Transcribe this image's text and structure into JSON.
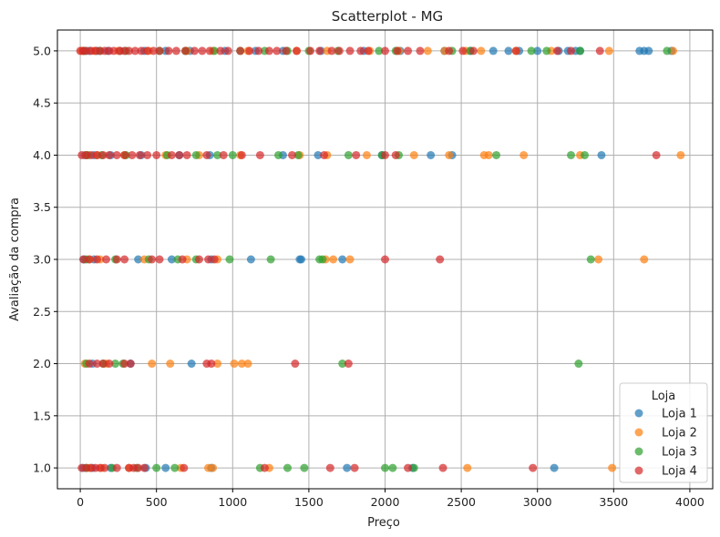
{
  "chart_data": {
    "type": "scatter",
    "title": "Scatterplot - MG",
    "xlabel": "Preço",
    "ylabel": "Avaliação da compra",
    "xlim": [
      -150,
      4150
    ],
    "ylim": [
      0.8,
      5.2
    ],
    "x_ticks": [
      0,
      500,
      1000,
      1500,
      2000,
      2500,
      3000,
      3500,
      4000
    ],
    "y_ticks": [
      1.0,
      1.5,
      2.0,
      2.5,
      3.0,
      3.5,
      4.0,
      4.5,
      5.0
    ],
    "x_tick_labels": [
      "0",
      "500",
      "1000",
      "1500",
      "2000",
      "2500",
      "3000",
      "3500",
      "4000"
    ],
    "y_tick_labels": [
      "1.0",
      "1.5",
      "2.0",
      "2.5",
      "3.0",
      "3.5",
      "4.0",
      "4.5",
      "5.0"
    ],
    "grid": true,
    "legend": {
      "title": "Loja",
      "placement": "lower-right"
    },
    "marker_alpha": 0.7,
    "series": [
      {
        "name": "Loja 1",
        "color": "#1f77b4",
        "points": [
          [
            20,
            5
          ],
          [
            60,
            5
          ],
          [
            110,
            5
          ],
          [
            180,
            5
          ],
          [
            260,
            5
          ],
          [
            420,
            5
          ],
          [
            560,
            5
          ],
          [
            720,
            5
          ],
          [
            950,
            5
          ],
          [
            1150,
            5
          ],
          [
            1330,
            5
          ],
          [
            1580,
            5
          ],
          [
            1860,
            5
          ],
          [
            2100,
            5
          ],
          [
            2390,
            5
          ],
          [
            2560,
            5
          ],
          [
            2710,
            5
          ],
          [
            2810,
            5
          ],
          [
            2880,
            5
          ],
          [
            3000,
            5
          ],
          [
            3140,
            5
          ],
          [
            3200,
            5
          ],
          [
            3250,
            5
          ],
          [
            3280,
            5
          ],
          [
            3670,
            5
          ],
          [
            3700,
            5
          ],
          [
            3730,
            5
          ],
          [
            3880,
            5
          ],
          [
            30,
            4
          ],
          [
            90,
            4
          ],
          [
            200,
            4
          ],
          [
            400,
            4
          ],
          [
            650,
            4
          ],
          [
            850,
            4
          ],
          [
            1330,
            4
          ],
          [
            1560,
            4
          ],
          [
            1980,
            4
          ],
          [
            2300,
            4
          ],
          [
            2440,
            4
          ],
          [
            3420,
            4
          ],
          [
            25,
            3
          ],
          [
            90,
            3
          ],
          [
            380,
            3
          ],
          [
            600,
            3
          ],
          [
            860,
            3
          ],
          [
            1120,
            3
          ],
          [
            1440,
            3
          ],
          [
            1450,
            3
          ],
          [
            1720,
            3
          ],
          [
            80,
            2
          ],
          [
            330,
            2
          ],
          [
            730,
            2
          ],
          [
            20,
            1
          ],
          [
            80,
            1
          ],
          [
            200,
            1
          ],
          [
            430,
            1
          ],
          [
            560,
            1
          ],
          [
            860,
            1
          ],
          [
            1750,
            1
          ],
          [
            2180,
            1
          ],
          [
            3110,
            1
          ]
        ]
      },
      {
        "name": "Loja 2",
        "color": "#ff7f0e",
        "points": [
          [
            10,
            5
          ],
          [
            90,
            5
          ],
          [
            250,
            5
          ],
          [
            450,
            5
          ],
          [
            700,
            5
          ],
          [
            870,
            5
          ],
          [
            1100,
            5
          ],
          [
            1420,
            5
          ],
          [
            1620,
            5
          ],
          [
            1900,
            5
          ],
          [
            2090,
            5
          ],
          [
            2280,
            5
          ],
          [
            2390,
            5
          ],
          [
            2530,
            5
          ],
          [
            2630,
            5
          ],
          [
            2860,
            5
          ],
          [
            3090,
            5
          ],
          [
            3470,
            5
          ],
          [
            3890,
            5
          ],
          [
            40,
            4
          ],
          [
            110,
            4
          ],
          [
            290,
            4
          ],
          [
            560,
            4
          ],
          [
            780,
            4
          ],
          [
            1050,
            4
          ],
          [
            1440,
            4
          ],
          [
            1620,
            4
          ],
          [
            1880,
            4
          ],
          [
            2190,
            4
          ],
          [
            2420,
            4
          ],
          [
            2650,
            4
          ],
          [
            2680,
            4
          ],
          [
            2910,
            4
          ],
          [
            3280,
            4
          ],
          [
            3940,
            4
          ],
          [
            60,
            3
          ],
          [
            130,
            3
          ],
          [
            420,
            3
          ],
          [
            700,
            3
          ],
          [
            900,
            3
          ],
          [
            1610,
            3
          ],
          [
            1660,
            3
          ],
          [
            1770,
            3
          ],
          [
            3400,
            3
          ],
          [
            3700,
            3
          ],
          [
            30,
            2
          ],
          [
            170,
            2
          ],
          [
            470,
            2
          ],
          [
            590,
            2
          ],
          [
            900,
            2
          ],
          [
            1010,
            2
          ],
          [
            1060,
            2
          ],
          [
            1100,
            2
          ],
          [
            60,
            1
          ],
          [
            140,
            1
          ],
          [
            320,
            1
          ],
          [
            660,
            1
          ],
          [
            840,
            1
          ],
          [
            870,
            1
          ],
          [
            1240,
            1
          ],
          [
            2540,
            1
          ],
          [
            3490,
            1
          ]
        ]
      },
      {
        "name": "Loja 3",
        "color": "#2ca02c",
        "points": [
          [
            30,
            5
          ],
          [
            130,
            5
          ],
          [
            300,
            5
          ],
          [
            520,
            5
          ],
          [
            690,
            5
          ],
          [
            880,
            5
          ],
          [
            1050,
            5
          ],
          [
            1210,
            5
          ],
          [
            1360,
            5
          ],
          [
            1500,
            5
          ],
          [
            1690,
            5
          ],
          [
            1960,
            5
          ],
          [
            2070,
            5
          ],
          [
            2440,
            5
          ],
          [
            2560,
            5
          ],
          [
            2960,
            5
          ],
          [
            3060,
            5
          ],
          [
            3280,
            5
          ],
          [
            3850,
            5
          ],
          [
            50,
            4
          ],
          [
            140,
            4
          ],
          [
            300,
            4
          ],
          [
            570,
            4
          ],
          [
            760,
            4
          ],
          [
            900,
            4
          ],
          [
            1000,
            4
          ],
          [
            1300,
            4
          ],
          [
            1430,
            4
          ],
          [
            1760,
            4
          ],
          [
            1980,
            4
          ],
          [
            2090,
            4
          ],
          [
            2730,
            4
          ],
          [
            3220,
            4
          ],
          [
            3310,
            4
          ],
          [
            40,
            3
          ],
          [
            230,
            3
          ],
          [
            450,
            3
          ],
          [
            640,
            3
          ],
          [
            760,
            3
          ],
          [
            980,
            3
          ],
          [
            1250,
            3
          ],
          [
            1570,
            3
          ],
          [
            1590,
            3
          ],
          [
            3350,
            3
          ],
          [
            40,
            2
          ],
          [
            150,
            2
          ],
          [
            230,
            2
          ],
          [
            280,
            2
          ],
          [
            1720,
            2
          ],
          [
            3270,
            2
          ],
          [
            40,
            1
          ],
          [
            210,
            1
          ],
          [
            370,
            1
          ],
          [
            500,
            1
          ],
          [
            620,
            1
          ],
          [
            1180,
            1
          ],
          [
            1360,
            1
          ],
          [
            1470,
            1
          ],
          [
            2000,
            1
          ],
          [
            2050,
            1
          ],
          [
            2190,
            1
          ]
        ]
      },
      {
        "name": "Loja 4",
        "color": "#d62728",
        "points": [
          [
            0,
            5
          ],
          [
            20,
            5
          ],
          [
            40,
            5
          ],
          [
            70,
            5
          ],
          [
            100,
            5
          ],
          [
            130,
            5
          ],
          [
            160,
            5
          ],
          [
            190,
            5
          ],
          [
            220,
            5
          ],
          [
            260,
            5
          ],
          [
            290,
            5
          ],
          [
            320,
            5
          ],
          [
            360,
            5
          ],
          [
            400,
            5
          ],
          [
            440,
            5
          ],
          [
            480,
            5
          ],
          [
            520,
            5
          ],
          [
            580,
            5
          ],
          [
            630,
            5
          ],
          [
            690,
            5
          ],
          [
            750,
            5
          ],
          [
            800,
            5
          ],
          [
            850,
            5
          ],
          [
            920,
            5
          ],
          [
            970,
            5
          ],
          [
            1050,
            5
          ],
          [
            1110,
            5
          ],
          [
            1170,
            5
          ],
          [
            1240,
            5
          ],
          [
            1290,
            5
          ],
          [
            1350,
            5
          ],
          [
            1420,
            5
          ],
          [
            1510,
            5
          ],
          [
            1570,
            5
          ],
          [
            1650,
            5
          ],
          [
            1700,
            5
          ],
          [
            1770,
            5
          ],
          [
            1840,
            5
          ],
          [
            1890,
            5
          ],
          [
            2000,
            5
          ],
          [
            2080,
            5
          ],
          [
            2150,
            5
          ],
          [
            2230,
            5
          ],
          [
            2420,
            5
          ],
          [
            2510,
            5
          ],
          [
            2580,
            5
          ],
          [
            2860,
            5
          ],
          [
            3130,
            5
          ],
          [
            3220,
            5
          ],
          [
            3410,
            5
          ],
          [
            10,
            4
          ],
          [
            40,
            4
          ],
          [
            70,
            4
          ],
          [
            110,
            4
          ],
          [
            150,
            4
          ],
          [
            190,
            4
          ],
          [
            240,
            4
          ],
          [
            290,
            4
          ],
          [
            340,
            4
          ],
          [
            390,
            4
          ],
          [
            440,
            4
          ],
          [
            500,
            4
          ],
          [
            600,
            4
          ],
          [
            650,
            4
          ],
          [
            700,
            4
          ],
          [
            830,
            4
          ],
          [
            940,
            4
          ],
          [
            1060,
            4
          ],
          [
            1180,
            4
          ],
          [
            1390,
            4
          ],
          [
            1600,
            4
          ],
          [
            1810,
            4
          ],
          [
            2000,
            4
          ],
          [
            2070,
            4
          ],
          [
            3780,
            4
          ],
          [
            20,
            3
          ],
          [
            60,
            3
          ],
          [
            110,
            3
          ],
          [
            170,
            3
          ],
          [
            240,
            3
          ],
          [
            290,
            3
          ],
          [
            470,
            3
          ],
          [
            520,
            3
          ],
          [
            670,
            3
          ],
          [
            780,
            3
          ],
          [
            840,
            3
          ],
          [
            880,
            3
          ],
          [
            2000,
            3
          ],
          [
            2360,
            3
          ],
          [
            60,
            2
          ],
          [
            110,
            2
          ],
          [
            150,
            2
          ],
          [
            190,
            2
          ],
          [
            290,
            2
          ],
          [
            330,
            2
          ],
          [
            830,
            2
          ],
          [
            860,
            2
          ],
          [
            1410,
            2
          ],
          [
            1760,
            2
          ],
          [
            10,
            1
          ],
          [
            40,
            1
          ],
          [
            70,
            1
          ],
          [
            100,
            1
          ],
          [
            130,
            1
          ],
          [
            160,
            1
          ],
          [
            240,
            1
          ],
          [
            320,
            1
          ],
          [
            350,
            1
          ],
          [
            380,
            1
          ],
          [
            420,
            1
          ],
          [
            680,
            1
          ],
          [
            1210,
            1
          ],
          [
            1640,
            1
          ],
          [
            1800,
            1
          ],
          [
            2150,
            1
          ],
          [
            2380,
            1
          ],
          [
            2970,
            1
          ]
        ]
      }
    ]
  }
}
